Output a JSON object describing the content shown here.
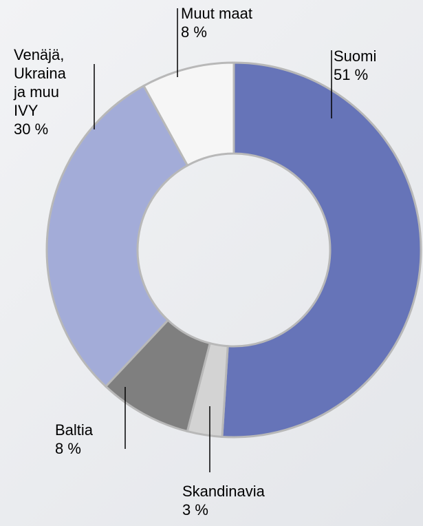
{
  "chart_data": {
    "type": "donut",
    "categories": [
      "Suomi",
      "Skandinavia",
      "Baltia",
      "Venäjä, Ukraina ja muu IVY",
      "Muut maat"
    ],
    "values": [
      51,
      3,
      8,
      30,
      8
    ],
    "value_labels": [
      "51 %",
      "3 %",
      "8 %",
      "30 %",
      "8 %"
    ],
    "colors": [
      "#6674b8",
      "#d3d3d3",
      "#7f7f7f",
      "#a3acd8",
      "#f6f6f6"
    ]
  }
}
